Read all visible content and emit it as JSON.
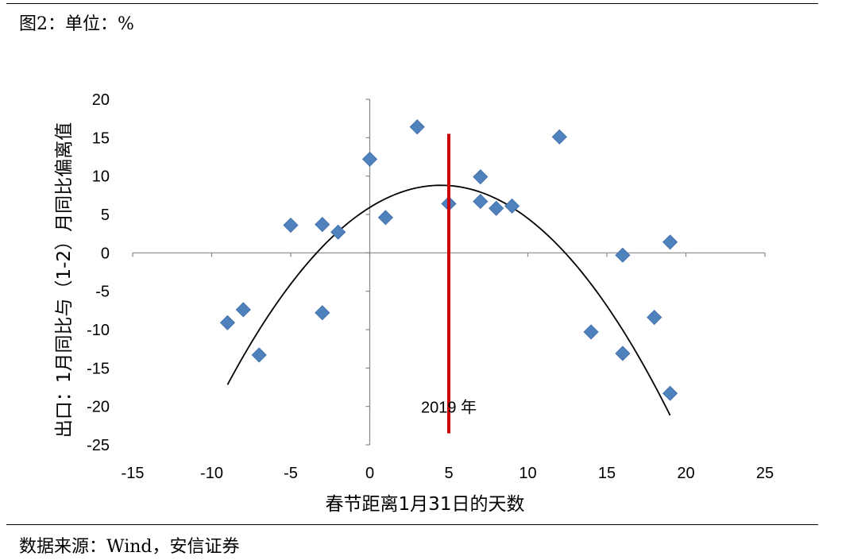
{
  "header": {
    "figure_title": "图2：单位：%"
  },
  "footer": {
    "source": "数据来源：Wind，安信证券"
  },
  "chart_data": {
    "type": "scatter",
    "title": "",
    "xlabel": "春节距离1月31日的天数",
    "ylabel": "出口：1月同比与（1-2）月同比偏离值",
    "xlim": [
      -15,
      25
    ],
    "ylim": [
      -25,
      20
    ],
    "xticks": [
      -15,
      -10,
      -5,
      0,
      5,
      10,
      15,
      20,
      25
    ],
    "yticks": [
      20,
      15,
      10,
      5,
      0,
      -5,
      -10,
      -15,
      -20,
      -25
    ],
    "grid": false,
    "legend": "none",
    "marker_color": "#4F81BD",
    "series": [
      {
        "x": [
          -9,
          -8,
          -7,
          -5,
          -3,
          -3,
          -2,
          0,
          1,
          3,
          5,
          7,
          7,
          8,
          9,
          12,
          14,
          16,
          16,
          18,
          19,
          19
        ],
        "y": [
          -9.1,
          -7.4,
          -13.3,
          3.6,
          3.7,
          -7.8,
          2.7,
          12.2,
          4.6,
          16.4,
          6.4,
          9.9,
          6.7,
          5.8,
          6.1,
          15.1,
          -10.3,
          -0.3,
          -13.1,
          -8.4,
          1.4,
          -18.3
        ]
      }
    ],
    "trendline": {
      "type": "quadratic",
      "x_range": [
        -9,
        19
      ],
      "vertex_x": 4.5,
      "vertex_y": 8.8,
      "a": -0.1425,
      "color": "#000000"
    },
    "vline": {
      "x": 5,
      "y_range": [
        -23.5,
        15.5
      ],
      "color": "#CC0000",
      "label": "2019 年"
    }
  }
}
